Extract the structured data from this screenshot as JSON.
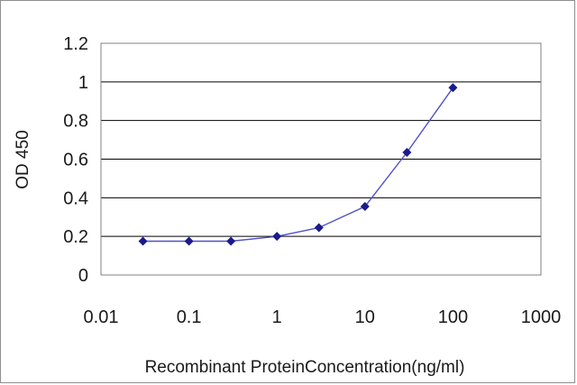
{
  "chart_data": {
    "type": "line",
    "title": "",
    "xlabel": "Recombinant ProteinConcentration(ng/ml)",
    "ylabel": "OD 450",
    "x_scale": "log",
    "xlim": [
      0.01,
      1000
    ],
    "ylim": [
      0,
      1.2
    ],
    "x_ticks": [
      "0.01",
      "0.1",
      "1",
      "10",
      "100",
      "1000"
    ],
    "y_ticks": [
      "0",
      "0.2",
      "0.4",
      "0.6",
      "0.8",
      "1",
      "1.2"
    ],
    "grid": "horizontal",
    "legend": "none",
    "series": [
      {
        "x": [
          0.03,
          0.1,
          0.3,
          1,
          3,
          10,
          30,
          100
        ],
        "y": [
          0.175,
          0.175,
          0.175,
          0.2,
          0.245,
          0.355,
          0.635,
          0.97
        ]
      }
    ],
    "colors": {
      "line": "#5050c8",
      "marker": "#1a1a8c",
      "grid": "#000000",
      "plot_border": "#808080"
    }
  }
}
